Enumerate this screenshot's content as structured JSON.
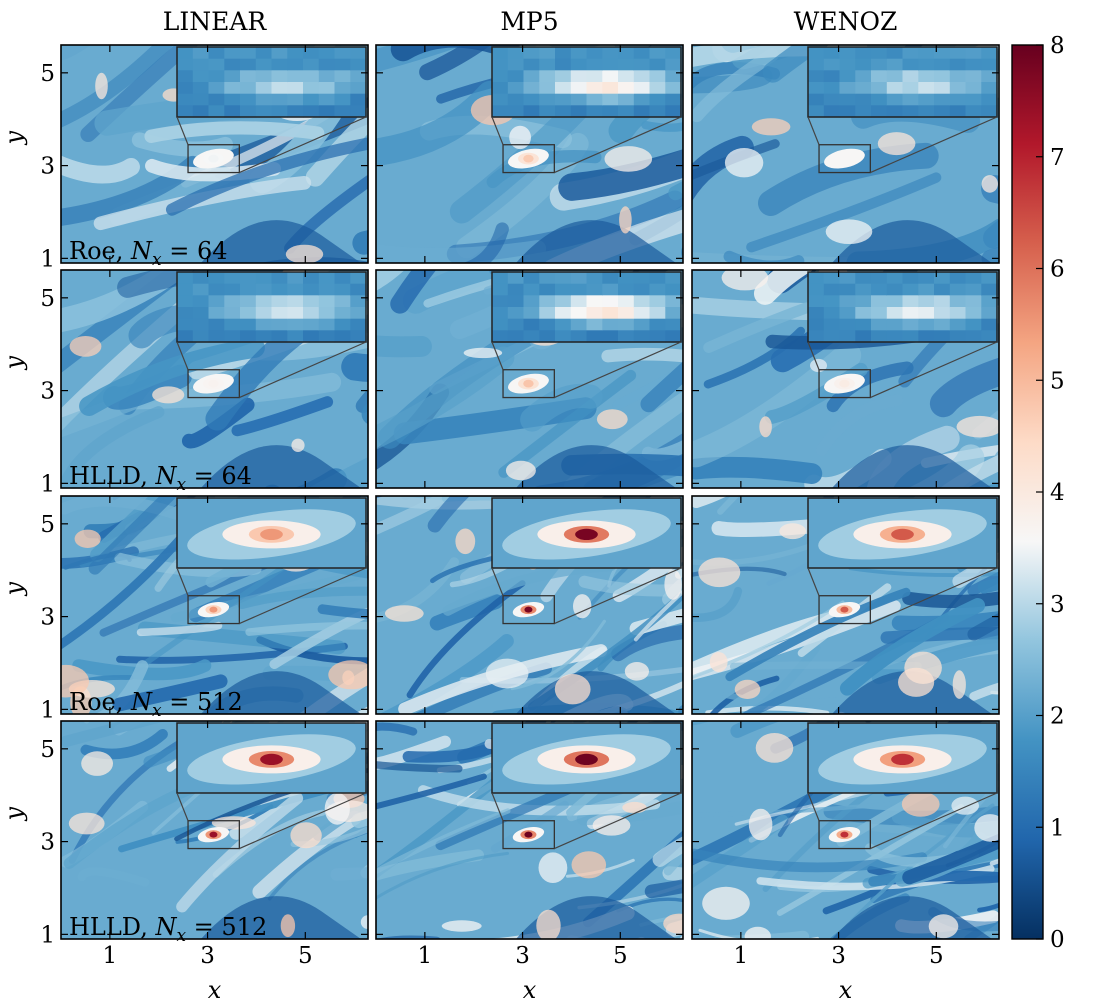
{
  "chart_data": {
    "type": "heatmap",
    "column_titles": [
      "LINEAR",
      "MP5",
      "WENOZ"
    ],
    "row_labels": [
      {
        "prefix": "Roe, ",
        "nx": "64"
      },
      {
        "prefix": "HLLD, ",
        "nx": "64"
      },
      {
        "prefix": "Roe, ",
        "nx": "512"
      },
      {
        "prefix": "HLLD, ",
        "nx": "512"
      }
    ],
    "nx_symbol": "N",
    "nx_subscript": "x",
    "nx_equals": " = ",
    "xlabel": "x",
    "ylabel": "y",
    "xlim": [
      0,
      6.2832
    ],
    "ylim": [
      0.9,
      5.6
    ],
    "xticks": [
      1,
      3,
      5
    ],
    "yticks": [
      1,
      3,
      5
    ],
    "colorbar": {
      "colormap": "RdBu_r",
      "range": [
        0,
        8
      ],
      "ticks": [
        0,
        1,
        2,
        3,
        4,
        5,
        6,
        7,
        8
      ],
      "colors": [
        "#053061",
        "#2166ac",
        "#4393c3",
        "#92c5de",
        "#f7f7f7",
        "#fddbc7",
        "#f4a582",
        "#d6604d",
        "#b2182b",
        "#67001f"
      ]
    },
    "zoom_box": {
      "x": [
        2.6,
        3.65
      ],
      "y": [
        2.85,
        3.45
      ]
    },
    "panels": [
      {
        "row": 0,
        "col": 0,
        "nx": 64,
        "vortex_peak": 3.5
      },
      {
        "row": 0,
        "col": 1,
        "nx": 64,
        "vortex_peak": 4.7
      },
      {
        "row": 0,
        "col": 2,
        "nx": 64,
        "vortex_peak": 3.6
      },
      {
        "row": 1,
        "col": 0,
        "nx": 64,
        "vortex_peak": 3.7
      },
      {
        "row": 1,
        "col": 1,
        "nx": 64,
        "vortex_peak": 4.8
      },
      {
        "row": 1,
        "col": 2,
        "nx": 64,
        "vortex_peak": 3.9
      },
      {
        "row": 2,
        "col": 0,
        "nx": 512,
        "vortex_peak": 5.5
      },
      {
        "row": 2,
        "col": 1,
        "nx": 512,
        "vortex_peak": 7.8
      },
      {
        "row": 2,
        "col": 2,
        "nx": 512,
        "vortex_peak": 6.3
      },
      {
        "row": 3,
        "col": 0,
        "nx": 512,
        "vortex_peak": 7.4
      },
      {
        "row": 3,
        "col": 1,
        "nx": 512,
        "vortex_peak": 7.9
      },
      {
        "row": 3,
        "col": 2,
        "nx": 512,
        "vortex_peak": 6.8
      }
    ]
  }
}
